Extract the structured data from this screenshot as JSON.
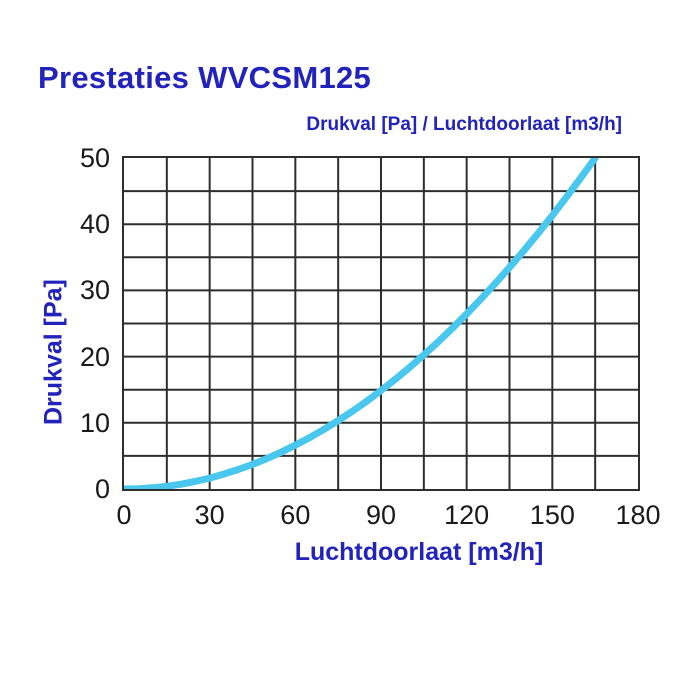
{
  "page": {
    "title": "Prestaties WVCSM125"
  },
  "chart_data": {
    "type": "line",
    "title": "Drukval [Pa] / Luchtdoorlaat [m3/h]",
    "xlabel": "Luchtdoorlaat [m3/h]",
    "ylabel": "Drukval [Pa]",
    "xlim": [
      0,
      180
    ],
    "ylim": [
      0,
      50
    ],
    "x_ticks": [
      0,
      30,
      60,
      90,
      120,
      150,
      180
    ],
    "y_ticks": [
      0,
      10,
      20,
      30,
      40,
      50
    ],
    "x_minor_step": 15,
    "y_minor_step": 5,
    "grid": "on",
    "legend": "none",
    "colors": {
      "curve": "#49c7ee",
      "grid": "#2e2e2e",
      "tick_text": "#1a1a1a",
      "label_blue": "#2222bd"
    },
    "series": [
      {
        "name": "pressure-drop-vs-airflow",
        "points": [
          [
            0,
            0
          ],
          [
            5,
            0.05
          ],
          [
            10,
            0.18
          ],
          [
            15,
            0.41
          ],
          [
            20,
            0.73
          ],
          [
            25,
            1.15
          ],
          [
            30,
            1.65
          ],
          [
            35,
            2.25
          ],
          [
            40,
            2.94
          ],
          [
            45,
            3.72
          ],
          [
            50,
            4.59
          ],
          [
            55,
            5.56
          ],
          [
            60,
            6.61
          ],
          [
            65,
            7.76
          ],
          [
            70,
            9.0
          ],
          [
            75,
            10.33
          ],
          [
            80,
            11.75
          ],
          [
            85,
            13.27
          ],
          [
            90,
            14.88
          ],
          [
            95,
            16.57
          ],
          [
            100,
            18.37
          ],
          [
            105,
            20.25
          ],
          [
            110,
            22.22
          ],
          [
            115,
            24.29
          ],
          [
            120,
            26.45
          ],
          [
            125,
            28.7
          ],
          [
            130,
            31.04
          ],
          [
            135,
            33.47
          ],
          [
            140,
            36.0
          ],
          [
            145,
            38.61
          ],
          [
            150,
            41.32
          ],
          [
            155,
            44.12
          ],
          [
            160,
            47.02
          ],
          [
            165,
            50.0
          ]
        ]
      }
    ]
  }
}
